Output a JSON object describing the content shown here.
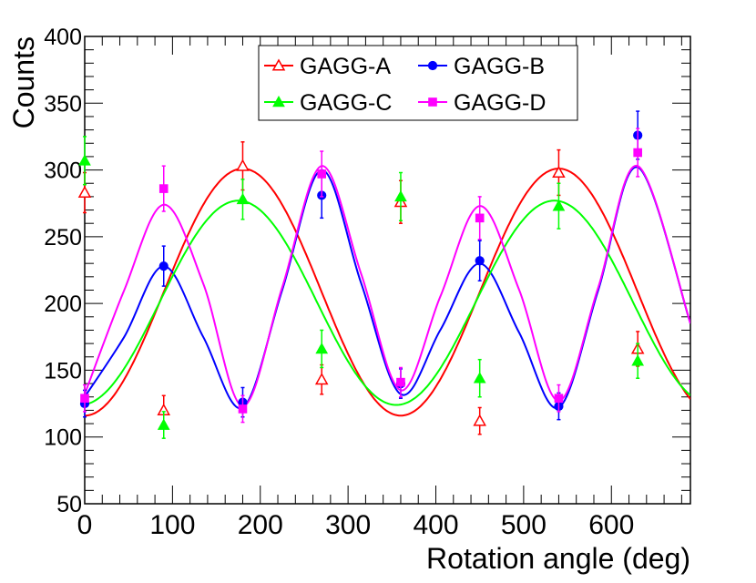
{
  "chart_data": {
    "type": "scatter",
    "title": "",
    "xlabel": "Rotation angle (deg)",
    "ylabel": "Counts",
    "xlim": [
      0,
      690
    ],
    "ylim": [
      50,
      400
    ],
    "x_ticks": [
      "0",
      "100",
      "200",
      "300",
      "400",
      "500",
      "600"
    ],
    "y_ticks": [
      "50",
      "100",
      "150",
      "200",
      "250",
      "300",
      "350",
      "400"
    ],
    "legend_position": "top-center",
    "series": [
      {
        "name": "GAGG-A",
        "color": "#ff0000",
        "marker": "open-triangle",
        "x": [
          0,
          90,
          180,
          270,
          360,
          450,
          540,
          630
        ],
        "y": [
          283,
          120,
          303,
          143,
          276,
          112,
          298,
          166
        ],
        "err": [
          15,
          11,
          18,
          11,
          16,
          10,
          17,
          13
        ],
        "fit": {
          "mean": 208.5,
          "amp": 92.5,
          "period": 360,
          "phase_deg": 180
        }
      },
      {
        "name": "GAGG-B",
        "color": "#0000ff",
        "marker": "filled-circle",
        "x": [
          0,
          90,
          180,
          270,
          360,
          450,
          540,
          630
        ],
        "y": [
          125,
          228,
          126,
          281,
          140,
          232,
          123,
          326
        ],
        "err": [
          10,
          15,
          11,
          17,
          11,
          15,
          10,
          18
        ],
        "fit_points": [
          [
            0,
            130
          ],
          [
            45,
            175
          ],
          [
            90,
            228
          ],
          [
            135,
            175
          ],
          [
            180,
            122
          ],
          [
            225,
            210
          ],
          [
            270,
            300
          ],
          [
            315,
            215
          ],
          [
            360,
            132
          ],
          [
            405,
            180
          ],
          [
            450,
            230
          ],
          [
            495,
            178
          ],
          [
            540,
            122
          ],
          [
            585,
            210
          ],
          [
            630,
            302
          ],
          [
            690,
            185
          ]
        ]
      },
      {
        "name": "GAGG-C",
        "color": "#00ff00",
        "marker": "filled-triangle",
        "x": [
          0,
          90,
          180,
          270,
          360,
          450,
          540,
          630
        ],
        "y": [
          307,
          109,
          278,
          166,
          280,
          144,
          273,
          157
        ],
        "err": [
          18,
          10,
          15,
          14,
          18,
          14,
          17,
          13
        ],
        "fit": {
          "mean": 200.5,
          "amp": 76.5,
          "period": 360,
          "phase_deg": 175
        }
      },
      {
        "name": "GAGG-D",
        "color": "#ff00ff",
        "marker": "filled-square",
        "x": [
          0,
          90,
          180,
          270,
          360,
          450,
          540,
          630
        ],
        "y": [
          129,
          286,
          121,
          297,
          141,
          264,
          129,
          313
        ],
        "err": [
          10,
          17,
          10,
          17,
          11,
          16,
          10,
          18
        ],
        "fit_points": [
          [
            0,
            132
          ],
          [
            45,
            210
          ],
          [
            90,
            274
          ],
          [
            135,
            215
          ],
          [
            180,
            123
          ],
          [
            225,
            212
          ],
          [
            270,
            303
          ],
          [
            315,
            222
          ],
          [
            360,
            135
          ],
          [
            405,
            205
          ],
          [
            450,
            273
          ],
          [
            495,
            210
          ],
          [
            540,
            127
          ],
          [
            585,
            212
          ],
          [
            630,
            303
          ],
          [
            690,
            185
          ]
        ]
      }
    ]
  }
}
